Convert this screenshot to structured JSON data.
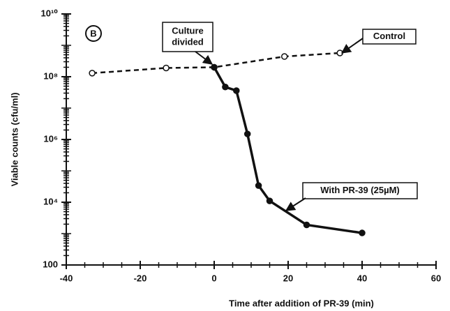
{
  "chart_data": {
    "type": "line",
    "panel_label": "B",
    "xlabel": "Time after addition of PR-39 (min)",
    "ylabel": "Viable counts (cfu/ml)",
    "log_y": true,
    "xlim": [
      -40,
      60
    ],
    "xticks": [
      -40,
      -20,
      0,
      20,
      40,
      60
    ],
    "ylim": [
      100,
      10000000000
    ],
    "yticks": [
      100,
      {
        "value": 10000,
        "label": "10⁴"
      },
      {
        "value": 1000000,
        "label": "10⁶"
      },
      {
        "value": 100000000,
        "label": "10⁸"
      },
      {
        "value": 10000000000,
        "label": "10¹⁰"
      }
    ],
    "series": [
      {
        "color": "#111111",
        "line_style": "dashed",
        "marker": "open-circle",
        "x": [
          -33,
          -13,
          0,
          19,
          34
        ],
        "values": [
          130000000,
          190000000,
          200000000,
          440000000,
          570000000
        ]
      },
      {
        "color": "#111111",
        "line_style": "solid",
        "marker": "filled-circle",
        "x": [
          0,
          3,
          6,
          9,
          12,
          15,
          25,
          40
        ],
        "values": [
          200000000,
          47000000,
          36000000,
          1500000,
          34000,
          11000,
          1900,
          1050
        ]
      }
    ],
    "annotations": [
      {
        "lines": [
          "Culture",
          "divided"
        ]
      },
      {
        "lines": [
          "Control"
        ]
      },
      {
        "lines": [
          "With PR-39 (25µM)"
        ]
      }
    ]
  }
}
